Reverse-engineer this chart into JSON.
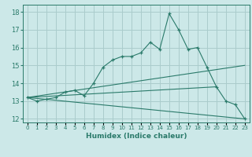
{
  "title": "",
  "xlabel": "Humidex (Indice chaleur)",
  "ylabel": "",
  "background_color": "#cce8e8",
  "grid_color": "#aacccc",
  "line_color": "#2a7a6a",
  "xlim": [
    -0.5,
    23.5
  ],
  "ylim": [
    11.8,
    18.4
  ],
  "yticks": [
    12,
    13,
    14,
    15,
    16,
    17,
    18
  ],
  "xticks": [
    0,
    1,
    2,
    3,
    4,
    5,
    6,
    7,
    8,
    9,
    10,
    11,
    12,
    13,
    14,
    15,
    16,
    17,
    18,
    19,
    20,
    21,
    22,
    23
  ],
  "lines": [
    {
      "x": [
        0,
        1,
        2,
        3,
        4,
        5,
        6,
        7,
        8,
        9,
        10,
        11,
        12,
        13,
        14,
        15,
        16,
        17,
        18,
        19,
        20,
        21,
        22,
        23
      ],
      "y": [
        13.2,
        13.0,
        13.1,
        13.2,
        13.5,
        13.6,
        13.3,
        14.0,
        14.9,
        15.3,
        15.5,
        15.5,
        15.7,
        16.3,
        15.9,
        17.9,
        17.0,
        15.9,
        16.0,
        14.9,
        13.8,
        13.0,
        12.8,
        12.0
      ],
      "marker": true
    },
    {
      "x": [
        0,
        23
      ],
      "y": [
        13.2,
        15.0
      ],
      "marker": false
    },
    {
      "x": [
        0,
        20
      ],
      "y": [
        13.2,
        13.8
      ],
      "marker": false
    },
    {
      "x": [
        0,
        23
      ],
      "y": [
        13.2,
        12.0
      ],
      "marker": false
    }
  ]
}
